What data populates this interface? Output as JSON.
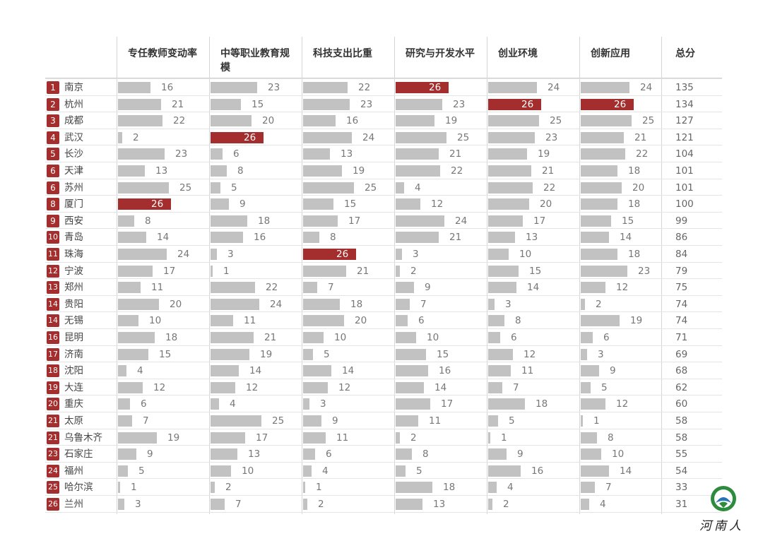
{
  "chart_data": {
    "type": "table",
    "columns": [
      "专任教师变动率",
      "中等职业教育规模",
      "科技支出比重",
      "研究与开发水平",
      "创业环境",
      "创新应用"
    ],
    "total_label": "总分",
    "max_value": 26,
    "rows": [
      {
        "rank": "1",
        "city": "南京",
        "values": [
          16,
          23,
          22,
          26,
          24,
          24
        ],
        "total": "135"
      },
      {
        "rank": "2",
        "city": "杭州",
        "values": [
          21,
          15,
          23,
          23,
          26,
          26
        ],
        "total": "134"
      },
      {
        "rank": "3",
        "city": "成都",
        "values": [
          22,
          20,
          16,
          19,
          25,
          25
        ],
        "total": "127"
      },
      {
        "rank": "4",
        "city": "武汉",
        "values": [
          2,
          26,
          24,
          25,
          23,
          21
        ],
        "total": "121"
      },
      {
        "rank": "5",
        "city": "长沙",
        "values": [
          23,
          6,
          13,
          21,
          19,
          22
        ],
        "total": "104"
      },
      {
        "rank": "6",
        "city": "天津",
        "values": [
          13,
          8,
          19,
          22,
          21,
          18
        ],
        "total": "101"
      },
      {
        "rank": "6",
        "city": "苏州",
        "values": [
          25,
          5,
          25,
          4,
          22,
          20
        ],
        "total": "101"
      },
      {
        "rank": "8",
        "city": "厦门",
        "values": [
          26,
          9,
          15,
          12,
          20,
          18
        ],
        "total": "100"
      },
      {
        "rank": "9",
        "city": "西安",
        "values": [
          8,
          18,
          17,
          24,
          17,
          15
        ],
        "total": "99"
      },
      {
        "rank": "10",
        "city": "青岛",
        "values": [
          14,
          16,
          8,
          21,
          13,
          14
        ],
        "total": "86"
      },
      {
        "rank": "11",
        "city": "珠海",
        "values": [
          24,
          3,
          26,
          3,
          10,
          18
        ],
        "total": "84"
      },
      {
        "rank": "12",
        "city": "宁波",
        "values": [
          17,
          1,
          21,
          2,
          15,
          23
        ],
        "total": "79"
      },
      {
        "rank": "13",
        "city": "郑州",
        "values": [
          11,
          22,
          7,
          9,
          14,
          12
        ],
        "total": "75"
      },
      {
        "rank": "14",
        "city": "贵阳",
        "values": [
          20,
          24,
          18,
          7,
          3,
          2
        ],
        "total": "74"
      },
      {
        "rank": "14",
        "city": "无锡",
        "values": [
          10,
          11,
          20,
          6,
          8,
          19
        ],
        "total": "74"
      },
      {
        "rank": "16",
        "city": "昆明",
        "values": [
          18,
          21,
          10,
          10,
          6,
          6
        ],
        "total": "71"
      },
      {
        "rank": "17",
        "city": "济南",
        "values": [
          15,
          19,
          5,
          15,
          12,
          3
        ],
        "total": "69"
      },
      {
        "rank": "18",
        "city": "沈阳",
        "values": [
          4,
          14,
          14,
          16,
          11,
          9
        ],
        "total": "68"
      },
      {
        "rank": "19",
        "city": "大连",
        "values": [
          12,
          12,
          12,
          14,
          7,
          5
        ],
        "total": "62"
      },
      {
        "rank": "20",
        "city": "重庆",
        "values": [
          6,
          4,
          3,
          17,
          18,
          12
        ],
        "total": "60"
      },
      {
        "rank": "21",
        "city": "太原",
        "values": [
          7,
          25,
          9,
          11,
          5,
          1
        ],
        "total": "58"
      },
      {
        "rank": "21",
        "city": "乌鲁木齐",
        "values": [
          19,
          17,
          11,
          2,
          1,
          8
        ],
        "total": "58"
      },
      {
        "rank": "23",
        "city": "石家庄",
        "values": [
          9,
          13,
          6,
          8,
          9,
          10
        ],
        "total": "55"
      },
      {
        "rank": "24",
        "city": "福州",
        "values": [
          5,
          10,
          4,
          5,
          16,
          14
        ],
        "total": "54"
      },
      {
        "rank": "25",
        "city": "哈尔滨",
        "values": [
          1,
          2,
          1,
          18,
          4,
          7
        ],
        "total": "33"
      },
      {
        "rank": "26",
        "city": "兰州",
        "values": [
          3,
          7,
          2,
          13,
          2,
          4
        ],
        "total": "31"
      }
    ],
    "colors": {
      "bar": "#c3c2c2",
      "top_bar": "#a42d2d",
      "rank_badge": "#a42d2d"
    }
  },
  "logo": {
    "text": "河南人"
  }
}
